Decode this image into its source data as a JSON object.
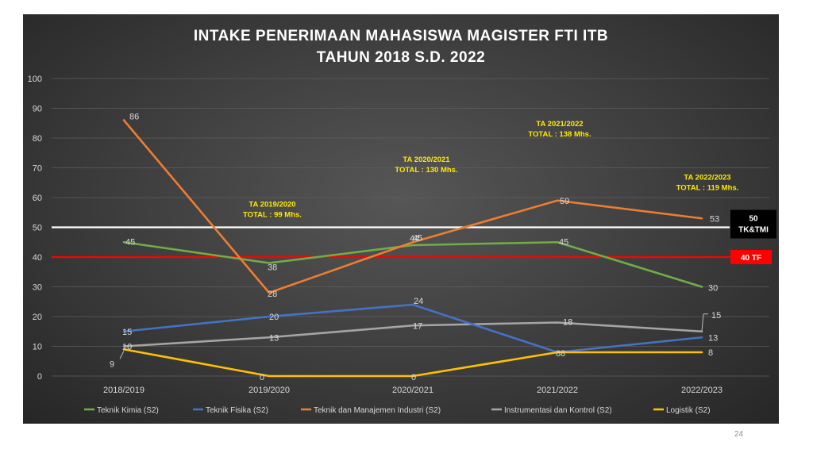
{
  "slide_number": "24",
  "chart_data": {
    "type": "line",
    "title": "INTAKE PENERIMAAN MAHASISWA MAGISTER FTI ITB",
    "subtitle": "TAHUN 2018 S.D. 2022",
    "categories": [
      "2018/2019",
      "2019/2020",
      "2020/2021",
      "2021/2022",
      "2022/2023"
    ],
    "ylim": [
      0,
      100
    ],
    "yticks": [
      0,
      10,
      20,
      30,
      40,
      50,
      60,
      70,
      80,
      90,
      100
    ],
    "grid": true,
    "legend_position": "bottom",
    "series": [
      {
        "name": "Teknik Kimia (S2)",
        "color": "#70ad47",
        "values": [
          45,
          38,
          44,
          45,
          30
        ]
      },
      {
        "name": "Teknik Fisika (S2)",
        "color": "#4472c4",
        "values": [
          15,
          20,
          24,
          8,
          13
        ]
      },
      {
        "name": "Teknik dan Manajemen Industri (S2)",
        "color": "#ed7d31",
        "values": [
          86,
          28,
          45,
          59,
          53
        ]
      },
      {
        "name": "Instrumentasi dan Kontrol (S2)",
        "color": "#a5a5a5",
        "values": [
          10,
          13,
          17,
          18,
          15
        ]
      },
      {
        "name": "Logistik (S2)",
        "color": "#ffc000",
        "values": [
          9,
          0,
          0,
          8,
          8
        ]
      }
    ],
    "reference_lines": [
      {
        "value": 50,
        "color": "#ffffff",
        "label_value": "50",
        "label_text": "TK&TMI",
        "label_bg": "#000000"
      },
      {
        "value": 40,
        "color": "#ff0000",
        "label_value": "40 TF",
        "label_text": "",
        "label_bg": "#ff0000"
      }
    ],
    "annotations": [
      {
        "category_index": 1,
        "y_value": 57,
        "line1": "TA 2019/2020",
        "line2": "TOTAL : 99 Mhs."
      },
      {
        "category_index": 2,
        "y_value": 72,
        "line1": "TA 2020/2021",
        "line2": "TOTAL : 130 Mhs."
      },
      {
        "category_index": 3,
        "y_value": 84,
        "line1": "TA 2021/2022",
        "line2": "TOTAL : 138 Mhs."
      },
      {
        "category_index": 4,
        "y_value": 66,
        "line1": "TA 2022/2023",
        "line2": "TOTAL : 119 Mhs."
      }
    ]
  }
}
